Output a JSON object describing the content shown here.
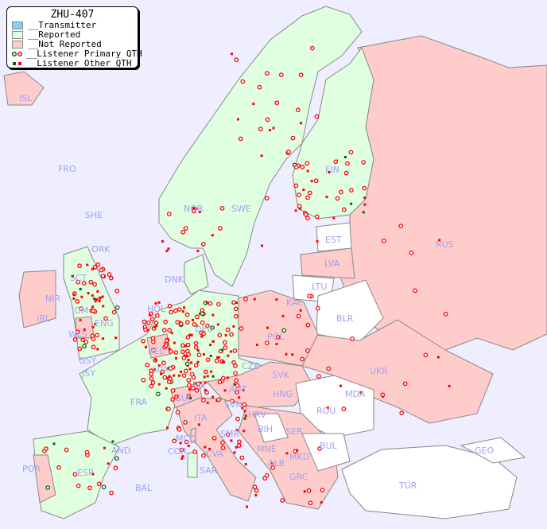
{
  "legend": {
    "title": "ZHU-407",
    "items": [
      {
        "label": "__Transmitter",
        "color": "#88ccff"
      },
      {
        "label": "__Reported",
        "color": "#e0ffe0"
      },
      {
        "label": "__Not Reported",
        "color": "#ffcccc"
      },
      {
        "label": "__Listener Primary QTH",
        "colors": [
          "#006600",
          "#ff0000"
        ]
      },
      {
        "label": "__Listener Other QTH",
        "colors": [
          "#006600",
          "#ff0000"
        ]
      }
    ]
  },
  "labels": [
    "ISL",
    "FRO",
    "SHE",
    "ORK",
    "NOR",
    "SWE",
    "FIN",
    "EST",
    "RUS",
    "LVA",
    "LTU",
    "KAL",
    "BLR",
    "DNK",
    "HOL",
    "DEU",
    "POL",
    "UKR",
    "SCT",
    "NIR",
    "IRL",
    "IOM",
    "WLS",
    "ENG",
    "BEL",
    "LUX",
    "GSY",
    "JSY",
    "FRA",
    "SUI",
    "LIE",
    "AUT",
    "CZE",
    "SVK",
    "HNG",
    "MDA",
    "ROU",
    "SVN",
    "HRV",
    "BIH",
    "SER",
    "BUL",
    "MNE",
    "ALB",
    "MKD",
    "GRC",
    "TUR",
    "GEO",
    "ITA",
    "SMR",
    "MCO",
    "COR",
    "CVA",
    "SAR",
    "AND",
    "ESP",
    "POR",
    "BAL"
  ],
  "colors": {
    "sea": "#eeeeff",
    "reported": "#e0ffe0",
    "not_reported": "#ffcccc",
    "no_data": "#ffffff",
    "label": "#a0a0ee"
  }
}
